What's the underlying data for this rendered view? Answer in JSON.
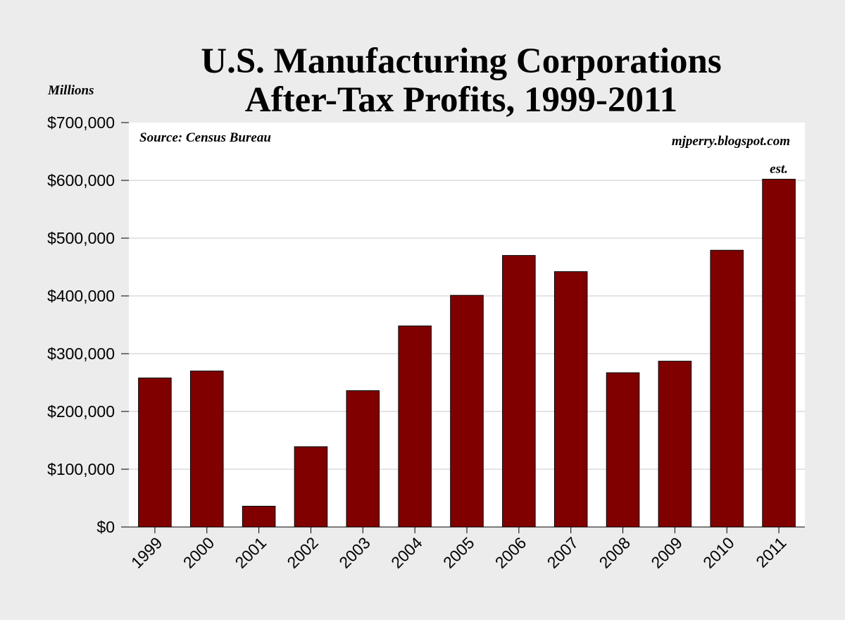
{
  "chart_data": {
    "type": "bar",
    "title_lines": [
      "U.S. Manufacturing Corporations",
      "After-Tax Profits, 1999-2011"
    ],
    "title": "U.S. Manufacturing Corporations After-Tax Profits, 1999-2011",
    "xlabel": "",
    "ylabel": "Millions",
    "categories": [
      "1999",
      "2000",
      "2001",
      "2002",
      "2003",
      "2004",
      "2005",
      "2006",
      "2007",
      "2008",
      "2009",
      "2010",
      "2011"
    ],
    "values": [
      258000,
      270000,
      36000,
      139000,
      236000,
      348000,
      401000,
      470000,
      442000,
      267000,
      287000,
      479000,
      602000
    ],
    "ylim": [
      0,
      700000
    ],
    "yticks": [
      0,
      100000,
      200000,
      300000,
      400000,
      500000,
      600000,
      700000
    ],
    "ytick_labels": [
      "$0",
      "$100,000",
      "$200,000",
      "$300,000",
      "$400,000",
      "$500,000",
      "$600,000",
      "$700,000"
    ],
    "grid": true,
    "annotations": {
      "source": "Source: Census Bureau",
      "watermark": "mjperry.blogspot.com",
      "estimate_note": "est."
    },
    "estimate_category": "2011",
    "colors": {
      "bar": "#800000",
      "background": "#ececec",
      "plot_background": "#ffffff"
    }
  }
}
